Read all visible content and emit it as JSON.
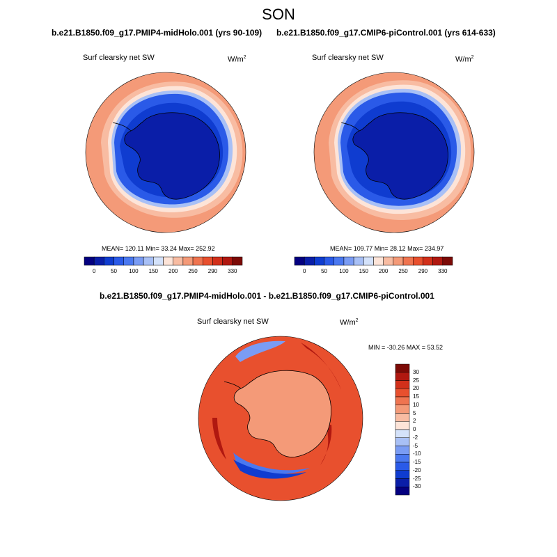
{
  "season": "SON",
  "units_base": "W/m",
  "units_exp": "2",
  "panels": [
    {
      "run_title": "b.e21.B1850.f09_g17.PMIP4-midHolo.001 (yrs 90-109)",
      "variable_label": "Surf clearsky net SW",
      "stats_text": "MEAN= 120.11  Min=  33.24  Max= 252.92",
      "mean": 120.11,
      "min": 33.24,
      "max": 252.92
    },
    {
      "run_title": "b.e21.B1850.f09_g17.CMIP6-piControl.001 (yrs 614-633)",
      "variable_label": "Surf clearsky net SW",
      "stats_text": "MEAN= 109.77  Min=  28.12  Max= 234.97",
      "mean": 109.77,
      "min": 28.12,
      "max": 234.97
    }
  ],
  "diff_panel": {
    "title": "b.e21.B1850.f09_g17.PMIP4-midHolo.001 - b.e21.B1850.f09_g17.CMIP6-piControl.001",
    "variable_label": "Surf clearsky net SW",
    "stats_text": "MIN = -30.26 MAX =  53.52",
    "min": -30.26,
    "max": 53.52
  },
  "abs_colorbar": {
    "tick_labels": [
      "0",
      "50",
      "100",
      "150",
      "200",
      "250",
      "290",
      "330"
    ],
    "colors": [
      "#040080",
      "#0a1ea8",
      "#0f3cd0",
      "#2a5ae8",
      "#4a78f0",
      "#7a9cf4",
      "#a8c0f6",
      "#d4e2fa",
      "#fde4d8",
      "#f8bca2",
      "#f49a78",
      "#ef7450",
      "#e8502e",
      "#d2301a",
      "#b01810",
      "#7c0a06"
    ]
  },
  "diff_colorbar": {
    "tick_labels": [
      "30",
      "25",
      "20",
      "15",
      "10",
      "5",
      "2",
      "0",
      "-2",
      "-5",
      "-10",
      "-15",
      "-20",
      "-25",
      "-30"
    ],
    "colors": [
      "#7c0a06",
      "#b01810",
      "#d2301a",
      "#e8502e",
      "#ef7450",
      "#f49a78",
      "#f8bca2",
      "#fde4d8",
      "#d4e2fa",
      "#a8c0f6",
      "#7a9cf4",
      "#4a78f0",
      "#2a5ae8",
      "#0f3cd0",
      "#0a1ea8",
      "#040080"
    ]
  },
  "map_colors": {
    "warm_outer": "#f49a78",
    "warm_mid": "#f8bca2",
    "pale_ring": "#fde4d8",
    "cool_ring": "#a8c0f6",
    "blue_sea_ice": "#2a5ae8",
    "blue_mid": "#0f3cd0",
    "antarctica": "#0a1ea8",
    "diff_background": "#e8502e",
    "diff_antarctica": "#f49a78",
    "diff_strong": "#b01810",
    "coastline": "#000000"
  }
}
